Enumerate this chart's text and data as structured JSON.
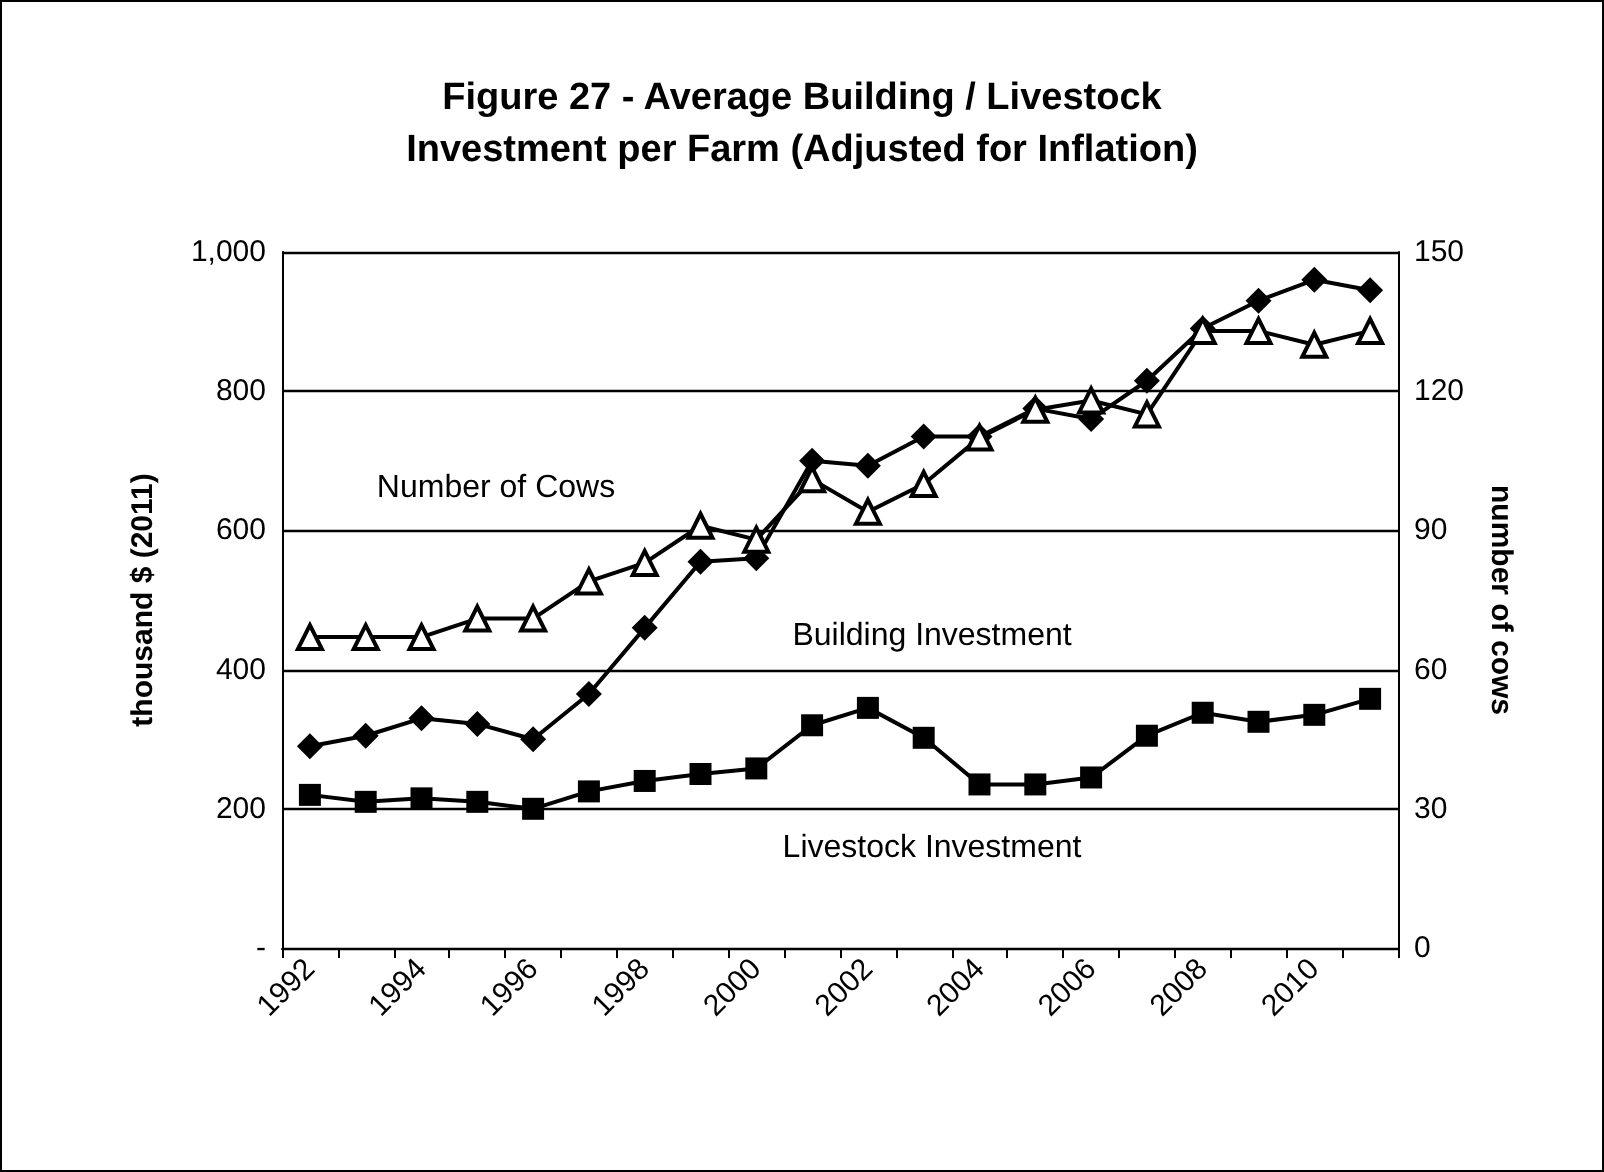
{
  "chart_data": {
    "type": "line",
    "title": "Figure 27 - Average Building / Livestock\nInvestment per Farm (Adjusted for Inflation)",
    "ylabel": "thousand $ (2011)",
    "y2label": "number of cows",
    "categories": [
      "1992",
      null,
      "1994",
      null,
      "1996",
      null,
      "1998",
      null,
      "2000",
      null,
      "2002",
      null,
      "2004",
      null,
      "2006",
      null,
      "2008",
      null,
      "2010",
      null
    ],
    "series": [
      {
        "name": "Building Investment",
        "color": "#000000",
        "marker": "diamond",
        "values": [
          290,
          305,
          330,
          322,
          300,
          365,
          460,
          555,
          560,
          700,
          693,
          735,
          735,
          775,
          760,
          815,
          890,
          930,
          960,
          945
        ]
      },
      {
        "name": "Livestock Investment",
        "color": "#000000",
        "marker": "square",
        "values": [
          220,
          210,
          215,
          210,
          200,
          225,
          240,
          250,
          258,
          320,
          345,
          302,
          235,
          235,
          245,
          305,
          338,
          325,
          335,
          358
        ]
      },
      {
        "name": "Number of Cows",
        "color": "#000000",
        "marker": "triangle",
        "axis": "y2",
        "values": [
          67,
          67,
          67,
          71,
          71,
          79,
          83,
          91,
          88,
          101,
          94,
          100,
          110,
          116,
          118,
          115,
          133,
          133,
          130,
          133
        ]
      }
    ],
    "ylim": [
      0,
      1000
    ],
    "yticks": [
      {
        "value": 0,
        "label": "-"
      },
      200,
      400,
      600,
      800,
      {
        "value": 1000,
        "label": "1,000"
      }
    ],
    "y2lim": [
      0,
      150
    ],
    "y2ticks": [
      0,
      30,
      60,
      90,
      120,
      150
    ],
    "grid": "y",
    "legend": false
  }
}
